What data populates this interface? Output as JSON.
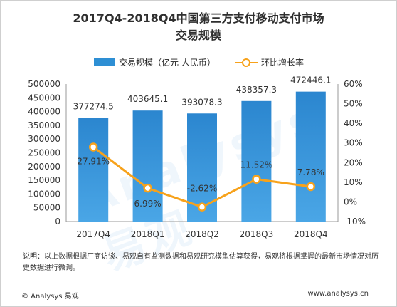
{
  "title_line1": "2017Q4-2018Q4中国第三方支付移动支付市场",
  "title_line2": "交易规模",
  "legend": {
    "bar_label": "交易规模（亿元 人民币）",
    "line_label": "环比增长率"
  },
  "colors": {
    "bar": "#2e8fd4",
    "line": "#f7a21b"
  },
  "chart_data": {
    "type": "bar",
    "categories": [
      "2017Q4",
      "2018Q1",
      "2018Q2",
      "2018Q3",
      "2018Q4"
    ],
    "series": [
      {
        "name": "交易规模（亿元 人民币）",
        "type": "bar",
        "axis": "left",
        "values": [
          377274.5,
          403645.1,
          393078.3,
          438357.3,
          472446.1
        ],
        "labels": [
          "377274.5",
          "403645.1",
          "393078.3",
          "438357.3",
          "472446.1"
        ]
      },
      {
        "name": "环比增长率",
        "type": "line",
        "axis": "right",
        "values": [
          27.91,
          6.99,
          -2.62,
          11.52,
          7.78
        ],
        "labels": [
          "27.91%",
          "6.99%",
          "-2.62%",
          "11.52%",
          "7.78%"
        ]
      }
    ],
    "y_left": {
      "min": 0,
      "max": 500000,
      "ticks": [
        "0",
        "50000",
        "100000",
        "150000",
        "200000",
        "250000",
        "300000",
        "350000",
        "400000",
        "450000",
        "500000"
      ]
    },
    "y_right": {
      "min": -10,
      "max": 60,
      "ticks": [
        "-10%",
        "0%",
        "10%",
        "20%",
        "30%",
        "40%",
        "50%",
        "60%"
      ]
    },
    "grid": false,
    "legend_position": "top"
  },
  "note": "说明：以上数据根据厂商访谈、易观自有监测数据和易观研究模型估算获得，易观将根据掌握的最新市场情况对历史数据进行微调。",
  "footer": {
    "left": "© Analysys 易观",
    "right": "www.analysys.cn"
  },
  "watermark": "Analysys 易观"
}
